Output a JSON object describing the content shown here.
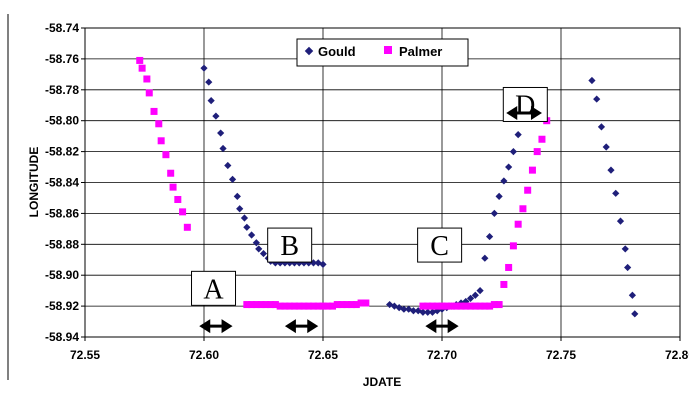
{
  "chart_data": {
    "type": "scatter",
    "title": "",
    "xlabel": "JDATE",
    "ylabel": "LONGITUDE",
    "xlim": [
      72.55,
      72.8
    ],
    "ylim": [
      -58.94,
      -58.74
    ],
    "x_ticks": [
      "72.55",
      "72.60",
      "72.65",
      "72.70",
      "72.75",
      "72.80"
    ],
    "y_ticks": [
      "-58.74",
      "-58.76",
      "-58.78",
      "-58.80",
      "-58.82",
      "-58.84",
      "-58.86",
      "-58.88",
      "-58.90",
      "-58.92",
      "-58.94"
    ],
    "grid": true,
    "legend_position": "top-center",
    "series": [
      {
        "name": "Gould",
        "color": "#1F1F7A",
        "marker": "diamond",
        "points": [
          [
            72.6,
            -58.766
          ],
          [
            72.602,
            -58.775
          ],
          [
            72.603,
            -58.787
          ],
          [
            72.605,
            -58.797
          ],
          [
            72.607,
            -58.808
          ],
          [
            72.608,
            -58.818
          ],
          [
            72.61,
            -58.829
          ],
          [
            72.612,
            -58.838
          ],
          [
            72.614,
            -58.849
          ],
          [
            72.615,
            -58.857
          ],
          [
            72.617,
            -58.863
          ],
          [
            72.618,
            -58.869
          ],
          [
            72.62,
            -58.874
          ],
          [
            72.622,
            -58.879
          ],
          [
            72.623,
            -58.883
          ],
          [
            72.625,
            -58.886
          ],
          [
            72.627,
            -58.889
          ],
          [
            72.628,
            -58.891
          ],
          [
            72.63,
            -58.892
          ],
          [
            72.632,
            -58.892
          ],
          [
            72.634,
            -58.892
          ],
          [
            72.636,
            -58.892
          ],
          [
            72.638,
            -58.892
          ],
          [
            72.64,
            -58.892
          ],
          [
            72.642,
            -58.892
          ],
          [
            72.644,
            -58.892
          ],
          [
            72.646,
            -58.892
          ],
          [
            72.648,
            -58.892
          ],
          [
            72.65,
            -58.893
          ],
          [
            72.678,
            -58.919
          ],
          [
            72.68,
            -58.92
          ],
          [
            72.682,
            -58.921
          ],
          [
            72.684,
            -58.922
          ],
          [
            72.686,
            -58.922
          ],
          [
            72.688,
            -58.923
          ],
          [
            72.69,
            -58.923
          ],
          [
            72.692,
            -58.924
          ],
          [
            72.694,
            -58.924
          ],
          [
            72.696,
            -58.924
          ],
          [
            72.698,
            -58.923
          ],
          [
            72.7,
            -58.922
          ],
          [
            72.702,
            -58.921
          ],
          [
            72.704,
            -58.92
          ],
          [
            72.706,
            -58.919
          ],
          [
            72.708,
            -58.918
          ],
          [
            72.71,
            -58.917
          ],
          [
            72.712,
            -58.915
          ],
          [
            72.714,
            -58.913
          ],
          [
            72.716,
            -58.91
          ],
          [
            72.718,
            -58.889
          ],
          [
            72.72,
            -58.875
          ],
          [
            72.722,
            -58.86
          ],
          [
            72.724,
            -58.849
          ],
          [
            72.726,
            -58.839
          ],
          [
            72.728,
            -58.83
          ],
          [
            72.73,
            -58.82
          ],
          [
            72.732,
            -58.809
          ],
          [
            72.763,
            -58.774
          ],
          [
            72.765,
            -58.786
          ],
          [
            72.767,
            -58.804
          ],
          [
            72.769,
            -58.817
          ],
          [
            72.771,
            -58.832
          ],
          [
            72.773,
            -58.847
          ],
          [
            72.775,
            -58.865
          ],
          [
            72.777,
            -58.883
          ],
          [
            72.778,
            -58.895
          ],
          [
            72.78,
            -58.913
          ],
          [
            72.781,
            -58.925
          ]
        ]
      },
      {
        "name": "Palmer",
        "color": "#FF00FF",
        "marker": "square",
        "points": [
          [
            72.573,
            -58.761
          ],
          [
            72.574,
            -58.766
          ],
          [
            72.576,
            -58.773
          ],
          [
            72.577,
            -58.782
          ],
          [
            72.579,
            -58.794
          ],
          [
            72.581,
            -58.802
          ],
          [
            72.582,
            -58.813
          ],
          [
            72.584,
            -58.822
          ],
          [
            72.586,
            -58.834
          ],
          [
            72.587,
            -58.843
          ],
          [
            72.589,
            -58.851
          ],
          [
            72.591,
            -58.859
          ],
          [
            72.593,
            -58.869
          ],
          [
            72.618,
            -58.919
          ],
          [
            72.62,
            -58.919
          ],
          [
            72.622,
            -58.919
          ],
          [
            72.624,
            -58.919
          ],
          [
            72.626,
            -58.919
          ],
          [
            72.628,
            -58.919
          ],
          [
            72.63,
            -58.919
          ],
          [
            72.632,
            -58.92
          ],
          [
            72.634,
            -58.92
          ],
          [
            72.636,
            -58.92
          ],
          [
            72.638,
            -58.92
          ],
          [
            72.64,
            -58.92
          ],
          [
            72.642,
            -58.92
          ],
          [
            72.644,
            -58.92
          ],
          [
            72.646,
            -58.92
          ],
          [
            72.648,
            -58.92
          ],
          [
            72.65,
            -58.92
          ],
          [
            72.652,
            -58.92
          ],
          [
            72.654,
            -58.92
          ],
          [
            72.656,
            -58.919
          ],
          [
            72.658,
            -58.919
          ],
          [
            72.66,
            -58.919
          ],
          [
            72.662,
            -58.919
          ],
          [
            72.664,
            -58.919
          ],
          [
            72.666,
            -58.918
          ],
          [
            72.668,
            -58.918
          ],
          [
            72.692,
            -58.92
          ],
          [
            72.694,
            -58.92
          ],
          [
            72.696,
            -58.92
          ],
          [
            72.698,
            -58.92
          ],
          [
            72.7,
            -58.92
          ],
          [
            72.702,
            -58.92
          ],
          [
            72.704,
            -58.92
          ],
          [
            72.706,
            -58.92
          ],
          [
            72.708,
            -58.92
          ],
          [
            72.71,
            -58.92
          ],
          [
            72.712,
            -58.92
          ],
          [
            72.714,
            -58.92
          ],
          [
            72.716,
            -58.92
          ],
          [
            72.718,
            -58.92
          ],
          [
            72.72,
            -58.92
          ],
          [
            72.722,
            -58.919
          ],
          [
            72.724,
            -58.919
          ],
          [
            72.726,
            -58.906
          ],
          [
            72.728,
            -58.895
          ],
          [
            72.73,
            -58.881
          ],
          [
            72.732,
            -58.867
          ],
          [
            72.734,
            -58.857
          ],
          [
            72.736,
            -58.845
          ],
          [
            72.738,
            -58.832
          ],
          [
            72.74,
            -58.82
          ],
          [
            72.742,
            -58.812
          ],
          [
            72.744,
            -58.8
          ]
        ]
      }
    ],
    "annotations": [
      {
        "label": "A",
        "x": 72.604,
        "y": -58.9085,
        "arrow": {
          "x1": 72.598,
          "x2": 72.612,
          "y": -58.933
        }
      },
      {
        "label": "B",
        "x": 72.636,
        "y": -58.8805,
        "arrow": {
          "x1": 72.634,
          "x2": 72.648,
          "y": -58.933
        }
      },
      {
        "label": "C",
        "x": 72.699,
        "y": -58.8805,
        "arrow": {
          "x1": 72.693,
          "x2": 72.707,
          "y": -58.933
        }
      },
      {
        "label": "D",
        "x": 72.735,
        "y": -58.7895,
        "arrow": {
          "x1": 72.727,
          "x2": 72.742,
          "y": -58.795
        }
      }
    ]
  }
}
